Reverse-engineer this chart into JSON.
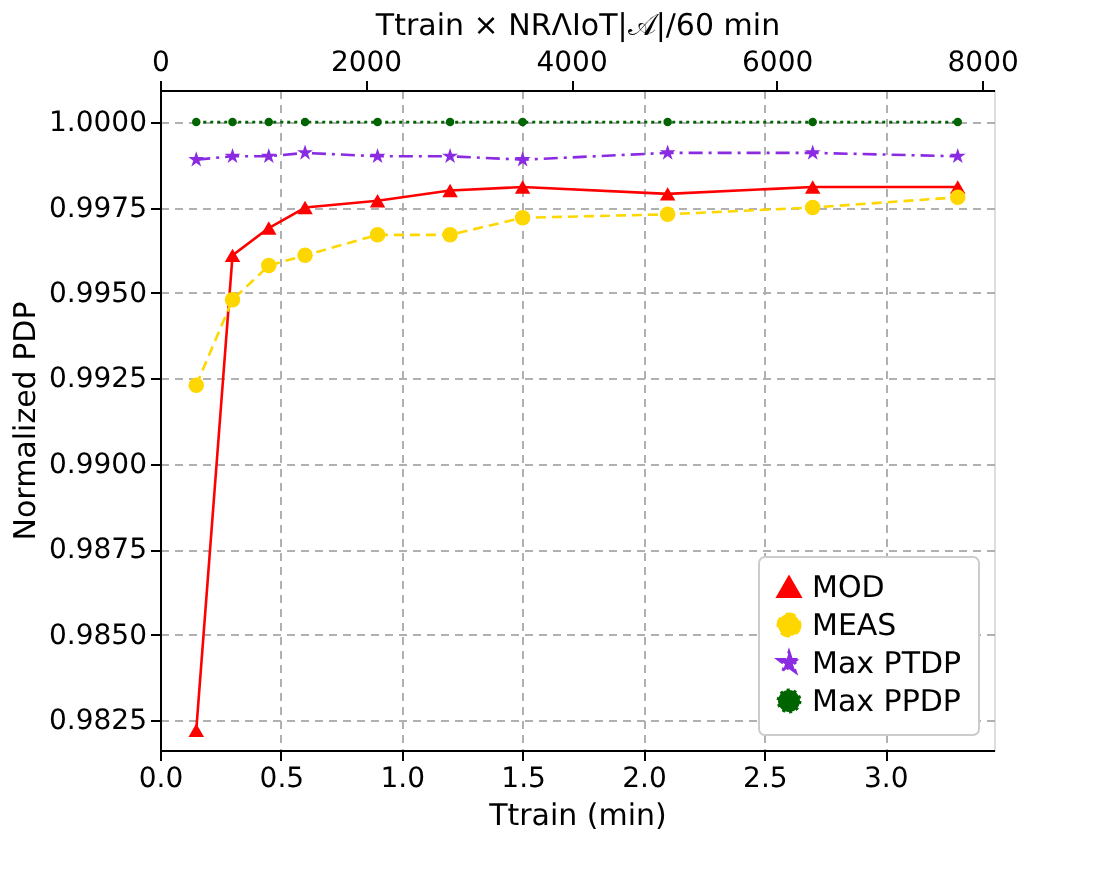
{
  "chart_data": {
    "type": "line",
    "xlabel": "Ttrain (min)",
    "ylabel": "Normalized PDP",
    "x2label": "Ttrain × NRΛIoT|𝒜|/60 min",
    "x": [
      0.15,
      0.3,
      0.45,
      0.6,
      0.9,
      1.2,
      1.5,
      2.1,
      2.7,
      3.3
    ],
    "series": [
      {
        "name": "MOD",
        "color": "#ff0000",
        "marker": "triangle",
        "line_style": "solid",
        "values": [
          0.9822,
          0.9961,
          0.9969,
          0.9975,
          0.9977,
          0.998,
          0.9981,
          0.9979,
          0.9981,
          0.9981
        ]
      },
      {
        "name": "MEAS",
        "color": "#ffd700",
        "marker": "circle",
        "line_style": "dashed",
        "values": [
          0.9923,
          0.9948,
          0.9958,
          0.9961,
          0.9967,
          0.9967,
          0.9972,
          0.9973,
          0.9975,
          0.9978
        ]
      },
      {
        "name": "Max PTDP",
        "color": "#8a2be2",
        "marker": "star",
        "line_style": "dashdot",
        "values": [
          0.9989,
          0.999,
          0.999,
          0.9991,
          0.999,
          0.999,
          0.9989,
          0.9991,
          0.9991,
          0.999
        ]
      },
      {
        "name": "Max PPDP",
        "color": "#006400",
        "marker": "circle",
        "line_style": "dotted",
        "values": [
          1.0,
          1.0,
          1.0,
          1.0,
          1.0,
          1.0,
          1.0,
          1.0,
          1.0,
          1.0
        ]
      }
    ],
    "xlim": [
      0,
      3.45
    ],
    "xticks": [
      {
        "value": 0,
        "label": "0.0"
      },
      0.5,
      {
        "value": 1,
        "label": "1.0"
      },
      1.5,
      {
        "value": 2,
        "label": "2.0"
      },
      2.5,
      {
        "value": 3,
        "label": "3.0"
      }
    ],
    "x2lim": [
      0,
      8115
    ],
    "x2ticks": [
      0,
      2000,
      4000,
      6000,
      8000
    ],
    "ylim": [
      0.98162,
      1.00094
    ],
    "yticks": [
      {
        "value": 0.9825,
        "label": "0.9825"
      },
      {
        "value": 0.985,
        "label": "0.9850"
      },
      {
        "value": 0.9875,
        "label": "0.9875"
      },
      {
        "value": 0.99,
        "label": "0.9900"
      },
      {
        "value": 0.9925,
        "label": "0.9925"
      },
      {
        "value": 0.995,
        "label": "0.9950"
      },
      {
        "value": 0.9975,
        "label": "0.9975"
      },
      {
        "value": 1.0,
        "label": "1.0000"
      }
    ],
    "grid": true,
    "legend": "bottom right"
  }
}
